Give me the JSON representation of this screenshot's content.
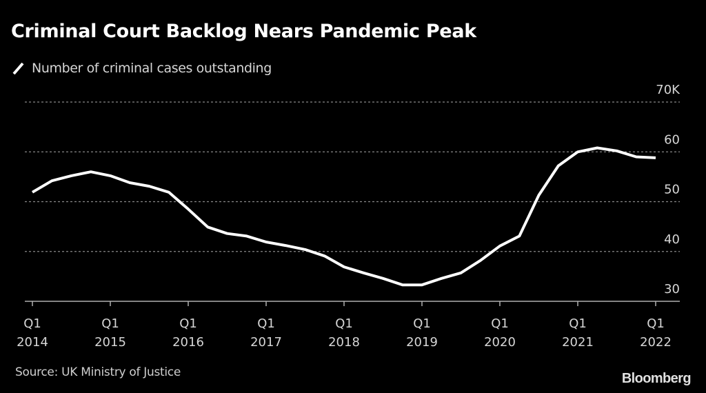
{
  "chart_data": {
    "type": "line",
    "title": "Criminal Court Backlog Nears Pandemic Peak",
    "legend": [
      {
        "label": "Number of criminal cases outstanding",
        "color": "#ffffff"
      }
    ],
    "legend_placement": "top-left",
    "xlabel": "",
    "ylabel": "",
    "unit": "K",
    "ylim": [
      30,
      70
    ],
    "y_ticks": [
      {
        "value": 70,
        "label": "70K"
      },
      {
        "value": 60,
        "label": "60"
      },
      {
        "value": 50,
        "label": "50"
      },
      {
        "value": 40,
        "label": "40"
      },
      {
        "value": 30,
        "label": "30"
      }
    ],
    "x_ticks": [
      {
        "index": 0,
        "q": "Q1",
        "year": "2014"
      },
      {
        "index": 4,
        "q": "Q1",
        "year": "2015"
      },
      {
        "index": 8,
        "q": "Q1",
        "year": "2016"
      },
      {
        "index": 12,
        "q": "Q1",
        "year": "2017"
      },
      {
        "index": 16,
        "q": "Q1",
        "year": "2018"
      },
      {
        "index": 20,
        "q": "Q1",
        "year": "2019"
      },
      {
        "index": 24,
        "q": "Q1",
        "year": "2020"
      },
      {
        "index": 28,
        "q": "Q1",
        "year": "2021"
      },
      {
        "index": 32,
        "q": "Q1",
        "year": "2022"
      }
    ],
    "grid": true,
    "x": [
      "2014 Q1",
      "2014 Q2",
      "2014 Q3",
      "2014 Q4",
      "2015 Q1",
      "2015 Q2",
      "2015 Q3",
      "2015 Q4",
      "2016 Q1",
      "2016 Q2",
      "2016 Q3",
      "2016 Q4",
      "2017 Q1",
      "2017 Q2",
      "2017 Q3",
      "2017 Q4",
      "2018 Q1",
      "2018 Q2",
      "2018 Q3",
      "2018 Q4",
      "2019 Q1",
      "2019 Q2",
      "2019 Q3",
      "2019 Q4",
      "2020 Q1",
      "2020 Q2",
      "2020 Q3",
      "2020 Q4",
      "2021 Q1",
      "2021 Q2",
      "2021 Q3",
      "2021 Q4",
      "2022 Q1"
    ],
    "series": [
      {
        "name": "Number of criminal cases outstanding",
        "color": "#ffffff",
        "values": [
          51.9,
          54.2,
          55.2,
          56.0,
          55.2,
          53.8,
          53.1,
          51.9,
          48.5,
          44.9,
          43.6,
          43.1,
          41.9,
          41.2,
          40.4,
          39.1,
          36.9,
          35.7,
          34.6,
          33.3,
          33.3,
          34.6,
          35.7,
          38.2,
          41.1,
          43.1,
          51.3,
          57.2,
          60.0,
          60.8,
          60.2,
          59.0,
          58.8
        ]
      }
    ]
  },
  "source": "Source: UK Ministry of Justice",
  "logo": "Bloomberg",
  "colors": {
    "background": "#000000",
    "line": "#ffffff",
    "grid": "#8a8a8a",
    "axis": "#b0b0b0",
    "text": "#d6d6d6"
  }
}
